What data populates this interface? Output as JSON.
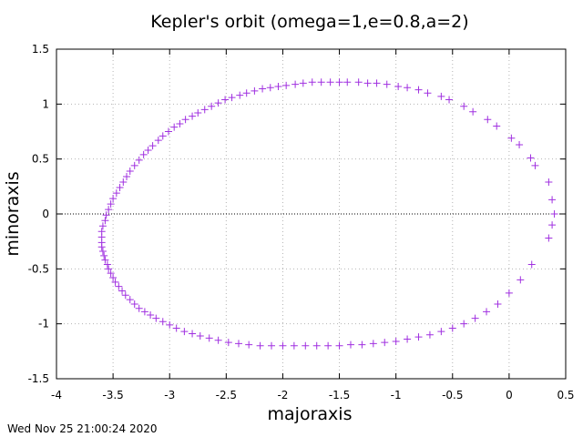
{
  "chart_data": {
    "type": "scatter",
    "title": "Kepler's orbit (omega=1,e=0.8,a=2)",
    "xlabel": "majoraxis",
    "ylabel": "minoraxis",
    "xlim": [
      -4,
      0.5
    ],
    "ylim": [
      -1.5,
      1.5
    ],
    "xticks": [
      -4,
      -3.5,
      -3,
      -2.5,
      -2,
      -1.5,
      -1,
      -0.5,
      0,
      0.5
    ],
    "yticks": [
      -1.5,
      -1,
      -0.5,
      0,
      0.5,
      1,
      1.5
    ],
    "xtick_labels": [
      "-4",
      "-3.5",
      "-3",
      "-2.5",
      "-2",
      "-1.5",
      "-1",
      "-0.5",
      "0",
      "0.5"
    ],
    "ytick_labels": [
      "-1.5",
      "-1",
      "-0.5",
      "0",
      "0.5",
      "1",
      "1.5"
    ],
    "grid": true,
    "zero_line_y": 0,
    "series": [
      {
        "marker": "plus",
        "color": "#a030e0",
        "points": [
          [
            0.4,
            0.0
          ],
          [
            0.38,
            0.13
          ],
          [
            0.35,
            0.29
          ],
          [
            0.23,
            0.44
          ],
          [
            0.19,
            0.51
          ],
          [
            0.09,
            0.63
          ],
          [
            0.02,
            0.69
          ],
          [
            -0.11,
            0.8
          ],
          [
            -0.19,
            0.86
          ],
          [
            -0.32,
            0.93
          ],
          [
            -0.4,
            0.98
          ],
          [
            -0.53,
            1.04
          ],
          [
            -0.6,
            1.07
          ],
          [
            -0.72,
            1.1
          ],
          [
            -0.8,
            1.13
          ],
          [
            -0.9,
            1.15
          ],
          [
            -0.98,
            1.16
          ],
          [
            -1.08,
            1.18
          ],
          [
            -1.17,
            1.19
          ],
          [
            -1.25,
            1.19
          ],
          [
            -1.33,
            1.2
          ],
          [
            -1.43,
            1.2
          ],
          [
            -1.5,
            1.2
          ],
          [
            -1.58,
            1.2
          ],
          [
            -1.66,
            1.2
          ],
          [
            -1.74,
            1.2
          ],
          [
            -1.82,
            1.19
          ],
          [
            -1.89,
            1.18
          ],
          [
            -1.97,
            1.17
          ],
          [
            -2.04,
            1.16
          ],
          [
            -2.11,
            1.15
          ],
          [
            -2.18,
            1.14
          ],
          [
            -2.25,
            1.12
          ],
          [
            -2.32,
            1.1
          ],
          [
            -2.38,
            1.08
          ],
          [
            -2.45,
            1.06
          ],
          [
            -2.51,
            1.04
          ],
          [
            -2.57,
            1.01
          ],
          [
            -2.63,
            0.98
          ],
          [
            -2.69,
            0.95
          ],
          [
            -2.75,
            0.92
          ],
          [
            -2.8,
            0.89
          ],
          [
            -2.86,
            0.86
          ],
          [
            -2.91,
            0.82
          ],
          [
            -2.96,
            0.79
          ],
          [
            -3.01,
            0.75
          ],
          [
            -3.06,
            0.71
          ],
          [
            -3.1,
            0.67
          ],
          [
            -3.15,
            0.62
          ],
          [
            -3.19,
            0.58
          ],
          [
            -3.23,
            0.54
          ],
          [
            -3.27,
            0.49
          ],
          [
            -3.31,
            0.44
          ],
          [
            -3.35,
            0.39
          ],
          [
            -3.38,
            0.34
          ],
          [
            -3.41,
            0.29
          ],
          [
            -3.44,
            0.24
          ],
          [
            -3.47,
            0.19
          ],
          [
            -3.5,
            0.14
          ],
          [
            -3.52,
            0.09
          ],
          [
            -3.54,
            0.04
          ],
          [
            -3.56,
            -0.01
          ],
          [
            -3.57,
            -0.06
          ],
          [
            -3.59,
            -0.11
          ],
          [
            -3.6,
            -0.16
          ],
          [
            -3.6,
            -0.21
          ],
          [
            -3.6,
            -0.26
          ],
          [
            -3.6,
            -0.3
          ],
          [
            -3.59,
            -0.34
          ],
          [
            -3.58,
            -0.38
          ],
          [
            -3.57,
            -0.42
          ],
          [
            -3.55,
            -0.46
          ],
          [
            -3.54,
            -0.5
          ],
          [
            -3.52,
            -0.54
          ],
          [
            -3.5,
            -0.58
          ],
          [
            -3.48,
            -0.62
          ],
          [
            -3.45,
            -0.66
          ],
          [
            -3.42,
            -0.7
          ],
          [
            -3.39,
            -0.74
          ],
          [
            -3.35,
            -0.78
          ],
          [
            -3.31,
            -0.82
          ],
          [
            -3.27,
            -0.86
          ],
          [
            -3.22,
            -0.89
          ],
          [
            -3.17,
            -0.92
          ],
          [
            -3.12,
            -0.95
          ],
          [
            -3.06,
            -0.98
          ],
          [
            -3.0,
            -1.01
          ],
          [
            -2.94,
            -1.04
          ],
          [
            -2.87,
            -1.07
          ],
          [
            -2.8,
            -1.09
          ],
          [
            -2.73,
            -1.11
          ],
          [
            -2.65,
            -1.13
          ],
          [
            -2.57,
            -1.15
          ],
          [
            -2.48,
            -1.17
          ],
          [
            -2.39,
            -1.18
          ],
          [
            -2.3,
            -1.19
          ],
          [
            -2.2,
            -1.2
          ],
          [
            -2.1,
            -1.2
          ],
          [
            -2.0,
            -1.2
          ],
          [
            -1.9,
            -1.2
          ],
          [
            -1.8,
            -1.2
          ],
          [
            -1.7,
            -1.2
          ],
          [
            -1.6,
            -1.2
          ],
          [
            -1.5,
            -1.2
          ],
          [
            -1.4,
            -1.19
          ],
          [
            -1.3,
            -1.19
          ],
          [
            -1.2,
            -1.18
          ],
          [
            -1.1,
            -1.17
          ],
          [
            -1.0,
            -1.16
          ],
          [
            -0.9,
            -1.14
          ],
          [
            -0.8,
            -1.12
          ],
          [
            -0.7,
            -1.1
          ],
          [
            -0.6,
            -1.07
          ],
          [
            -0.5,
            -1.04
          ],
          [
            -0.4,
            -1.0
          ],
          [
            -0.3,
            -0.95
          ],
          [
            -0.2,
            -0.89
          ],
          [
            -0.1,
            -0.82
          ],
          [
            0.0,
            -0.72
          ],
          [
            0.1,
            -0.6
          ],
          [
            0.2,
            -0.46
          ],
          [
            0.35,
            -0.22
          ],
          [
            0.38,
            -0.1
          ]
        ]
      }
    ]
  },
  "timestamp": "Wed Nov 25 21:00:24 2020",
  "colors": {
    "marker": "#a030e0",
    "grid": "#b4b4b4",
    "axis": "#000000"
  }
}
